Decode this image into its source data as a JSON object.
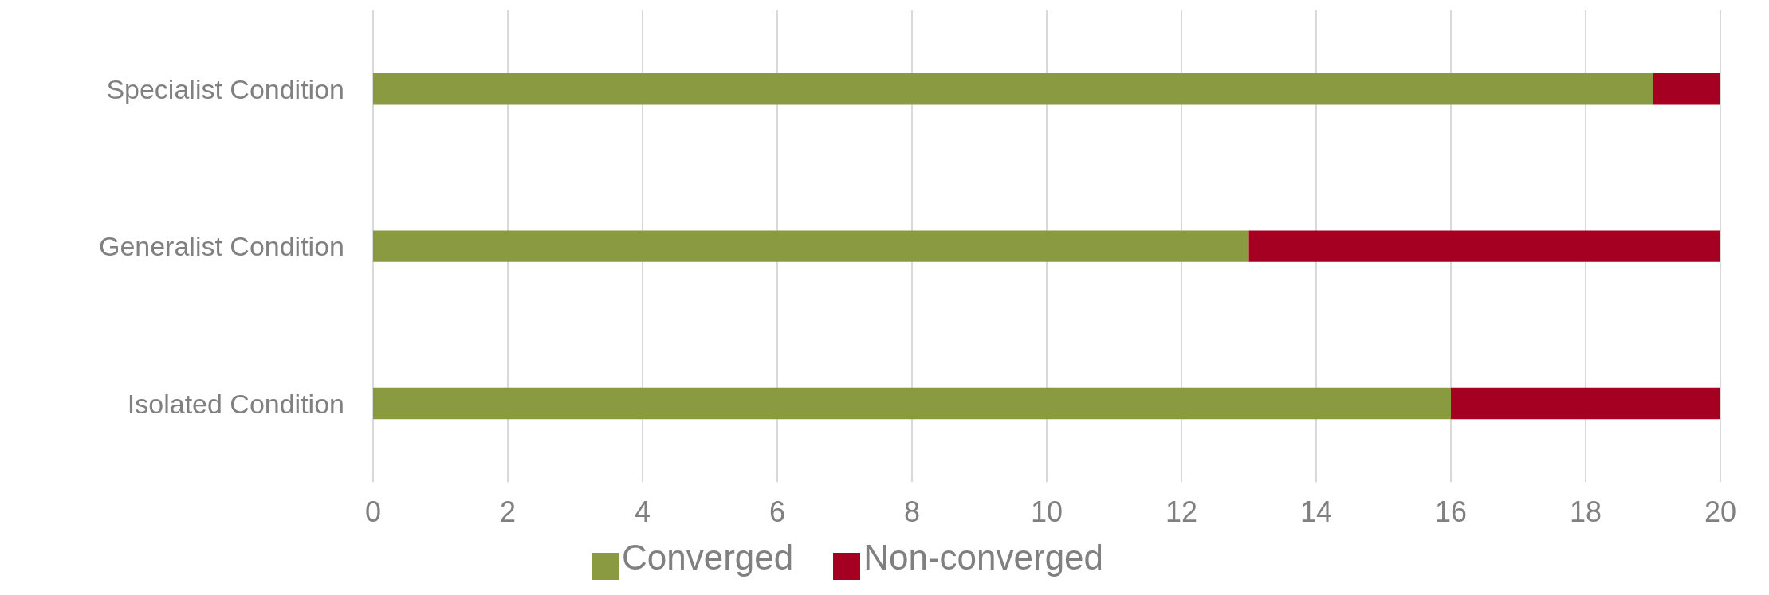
{
  "chart_data": {
    "type": "bar",
    "orientation": "horizontal",
    "stacked": true,
    "categories": [
      "Specialist Condition",
      "Generalist Condition",
      "Isolated Condition"
    ],
    "series": [
      {
        "name": "Converged",
        "color": "#8a9a41",
        "values": [
          19,
          13,
          16
        ]
      },
      {
        "name": "Non-converged",
        "color": "#a50021",
        "values": [
          1,
          7,
          4
        ]
      }
    ],
    "xlim": [
      0,
      20
    ],
    "xticks": [
      0,
      2,
      4,
      6,
      8,
      10,
      12,
      14,
      16,
      18,
      20
    ],
    "grid": "x",
    "legend": "bottom"
  }
}
